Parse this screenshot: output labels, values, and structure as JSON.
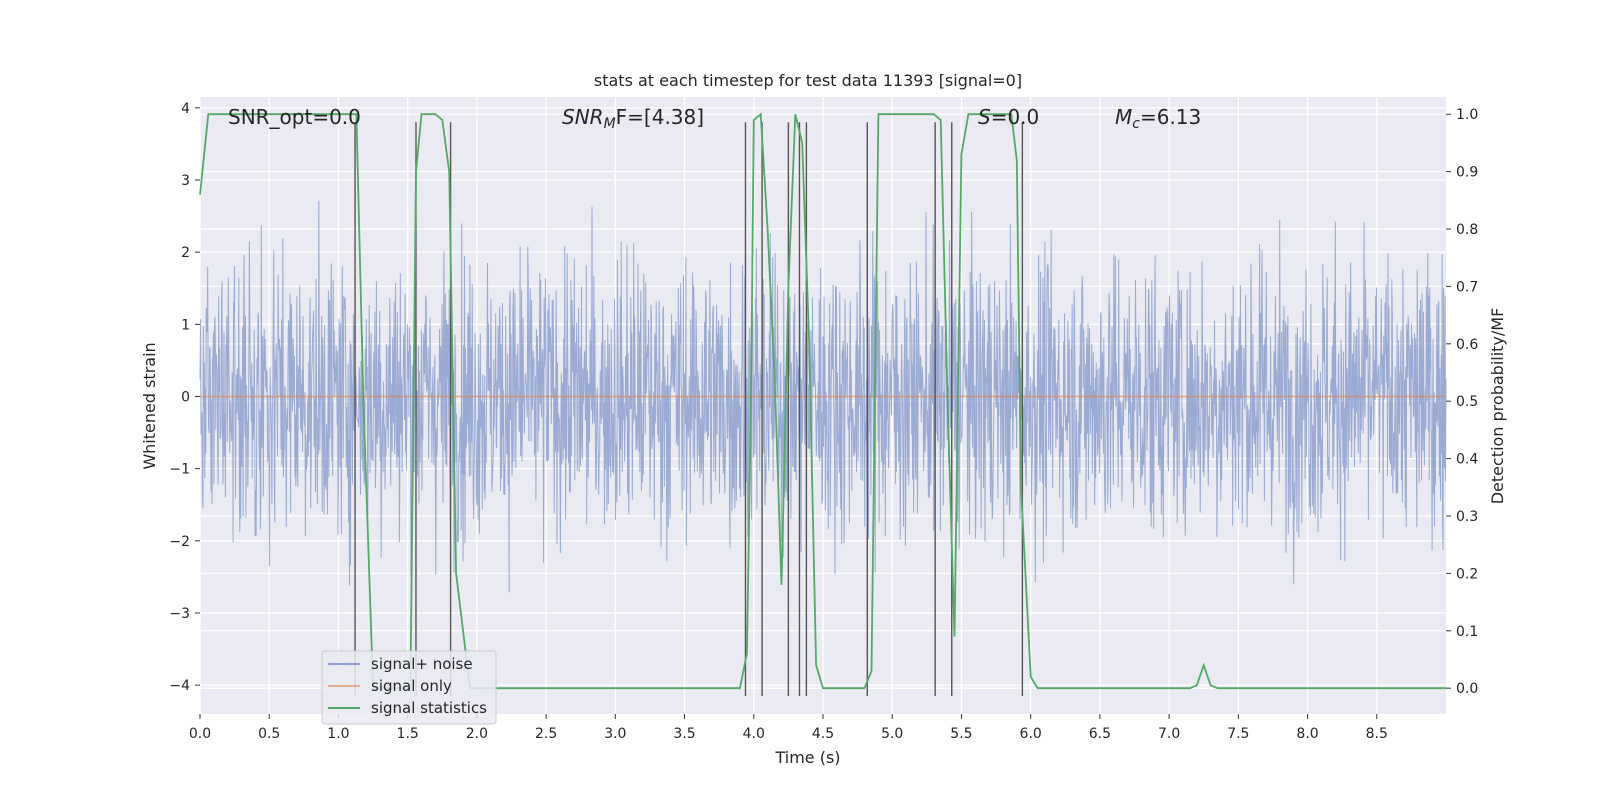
{
  "chart_data": {
    "type": "line",
    "title": "stats at each timestep for test data 11393 [signal=0]",
    "xlabel": "Time (s)",
    "ylabel": "Whitened strain",
    "ylabel_right": "Detection probability/MF",
    "xlim": [
      0.0,
      9.0
    ],
    "ylim": [
      -4.4,
      4.15
    ],
    "ylim_right": [
      -0.045,
      1.03
    ],
    "x_ticks": [
      "0.0",
      "0.5",
      "1.0",
      "1.5",
      "2.0",
      "2.5",
      "3.0",
      "3.5",
      "4.0",
      "4.5",
      "5.0",
      "5.5",
      "6.0",
      "6.5",
      "7.0",
      "7.5",
      "8.0",
      "8.5"
    ],
    "y_ticks": [
      "4",
      "3",
      "2",
      "1",
      "0",
      "−1",
      "−2",
      "−3",
      "−4"
    ],
    "y_ticks_right": [
      "1.0",
      "0.9",
      "0.8",
      "0.7",
      "0.6",
      "0.5",
      "0.4",
      "0.3",
      "0.2",
      "0.1",
      "0.0"
    ],
    "annotations": {
      "snr_opt": "SNR_opt=0.0",
      "snr_mf_italic": "SNR",
      "snr_mf_sub": "M",
      "snr_mf_tail": "F=[4.38]",
      "s_italic": "S",
      "s_tail": "=0.0",
      "mc_italic": "M",
      "mc_sub": "c",
      "mc_tail": "=6.13"
    },
    "legend": {
      "placement": "lower-left",
      "entries": [
        "signal+ noise",
        "signal only",
        "signal statistics"
      ]
    },
    "grid": true,
    "colors": {
      "noise": "#8c9fcd",
      "signal": "#dd8452",
      "stats": "#55a868",
      "vlines": "#555555",
      "background": "#eaeaf2"
    },
    "series": [
      {
        "name": "signal+ noise",
        "summary": "dense noise trace, roughly between -3.8 and 3.8",
        "x_range": [
          0.0,
          9.0
        ],
        "y_range": [
          -3.8,
          3.8
        ]
      },
      {
        "name": "signal only",
        "x": [
          0.0,
          9.0
        ],
        "y": [
          0.0,
          0.0
        ]
      },
      {
        "name": "signal statistics",
        "axis": "right",
        "x": [
          0.0,
          0.06,
          0.1,
          0.2,
          0.4,
          0.6,
          0.8,
          1.0,
          1.1,
          1.13,
          1.18,
          1.25,
          1.35,
          1.45,
          1.52,
          1.56,
          1.6,
          1.65,
          1.7,
          1.75,
          1.8,
          1.85,
          1.95,
          2.2,
          2.5,
          3.0,
          3.5,
          3.9,
          3.95,
          3.98,
          4.0,
          4.05,
          4.1,
          4.15,
          4.2,
          4.25,
          4.3,
          4.35,
          4.4,
          4.45,
          4.5,
          4.6,
          4.7,
          4.8,
          4.85,
          4.9,
          5.0,
          5.2,
          5.3,
          5.35,
          5.4,
          5.45,
          5.5,
          5.55,
          5.6,
          5.7,
          5.8,
          5.86,
          5.9,
          5.93,
          6.0,
          6.05,
          6.1,
          6.2,
          6.3,
          6.4,
          6.5,
          7.0,
          7.15,
          7.2,
          7.25,
          7.3,
          7.35,
          7.5,
          8.0,
          8.5,
          9.0
        ],
        "y": [
          0.86,
          1.0,
          1.0,
          1.0,
          1.0,
          1.0,
          1.0,
          1.0,
          1.0,
          1.0,
          0.5,
          0.0,
          0.0,
          0.0,
          0.0,
          0.9,
          1.0,
          1.0,
          1.0,
          0.99,
          0.9,
          0.2,
          0.0,
          0.0,
          0.0,
          0.0,
          0.0,
          0.0,
          0.06,
          0.5,
          0.99,
          1.0,
          0.8,
          0.55,
          0.18,
          0.7,
          1.0,
          0.95,
          0.6,
          0.04,
          0.0,
          0.0,
          0.0,
          0.0,
          0.03,
          1.0,
          1.0,
          1.0,
          1.0,
          0.99,
          0.5,
          0.09,
          0.93,
          1.0,
          1.0,
          1.0,
          1.0,
          1.0,
          0.92,
          0.35,
          0.02,
          0.0,
          0.0,
          0.0,
          0.0,
          0.0,
          0.0,
          0.0,
          0.0,
          0.005,
          0.04,
          0.005,
          0.0,
          0.0,
          0.0,
          0.0,
          0.0
        ]
      }
    ],
    "vertical_lines": {
      "x": [
        1.12,
        1.56,
        1.81,
        3.94,
        4.06,
        4.25,
        4.33,
        4.38,
        4.82,
        5.31,
        5.43,
        5.94
      ],
      "y_range": [
        -4.15,
        3.8
      ]
    }
  }
}
